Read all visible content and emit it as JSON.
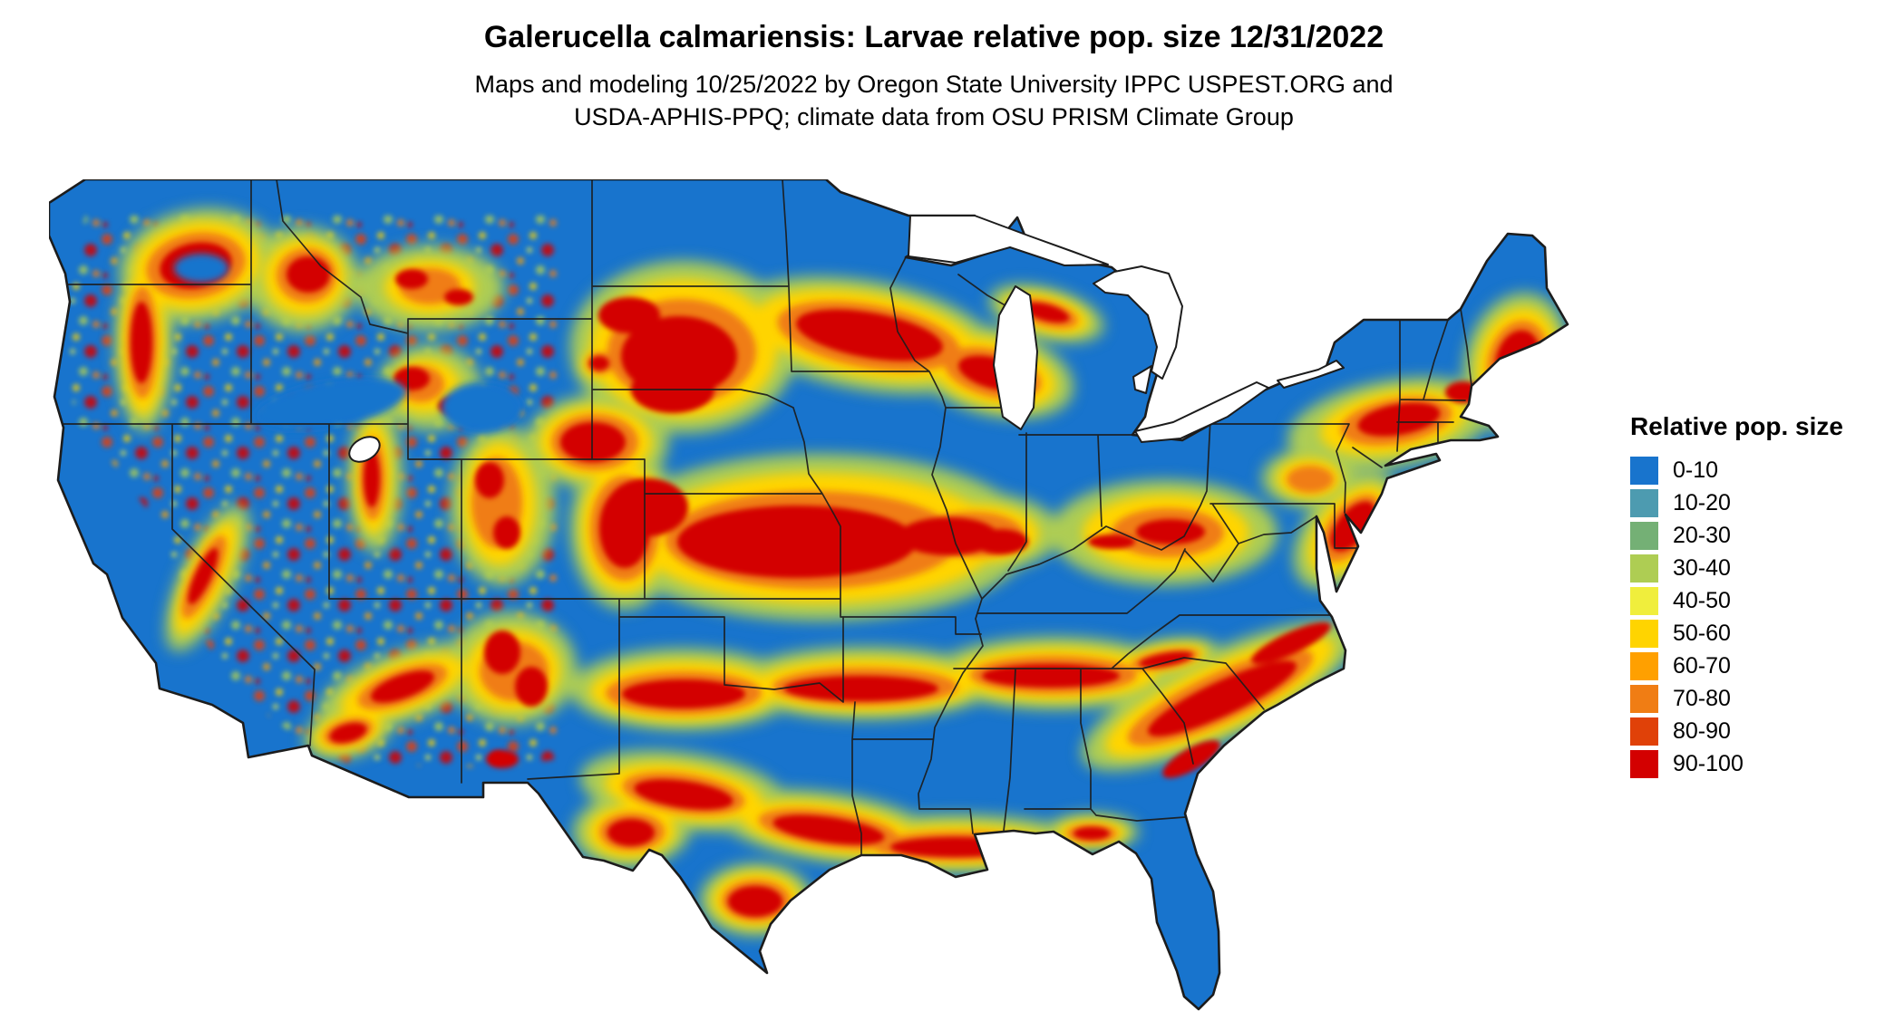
{
  "title": "Galerucella calmariensis: Larvae relative pop. size 12/31/2022",
  "subtitle": {
    "line1": "Maps and modeling 10/25/2022 by Oregon State University IPPC USPEST.ORG and",
    "line2": "USDA-APHIS-PPQ; climate data from OSU PRISM Climate Group"
  },
  "legend": {
    "title": "Relative pop. size",
    "items": [
      {
        "label": "0-10",
        "color": "#1874CD"
      },
      {
        "label": "10-20",
        "color": "#4D9BB0"
      },
      {
        "label": "20-30",
        "color": "#74B075"
      },
      {
        "label": "30-40",
        "color": "#AECD53"
      },
      {
        "label": "40-50",
        "color": "#F0EE3C"
      },
      {
        "label": "50-60",
        "color": "#FFD400"
      },
      {
        "label": "60-70",
        "color": "#FFA000"
      },
      {
        "label": "70-80",
        "color": "#F07D14"
      },
      {
        "label": "80-90",
        "color": "#E04108"
      },
      {
        "label": "90-100",
        "color": "#D30000"
      }
    ]
  },
  "map": {
    "region_label": "Contiguous United States",
    "background_color": "#FFFFFF",
    "boundary_color": "#1C1C1C"
  }
}
